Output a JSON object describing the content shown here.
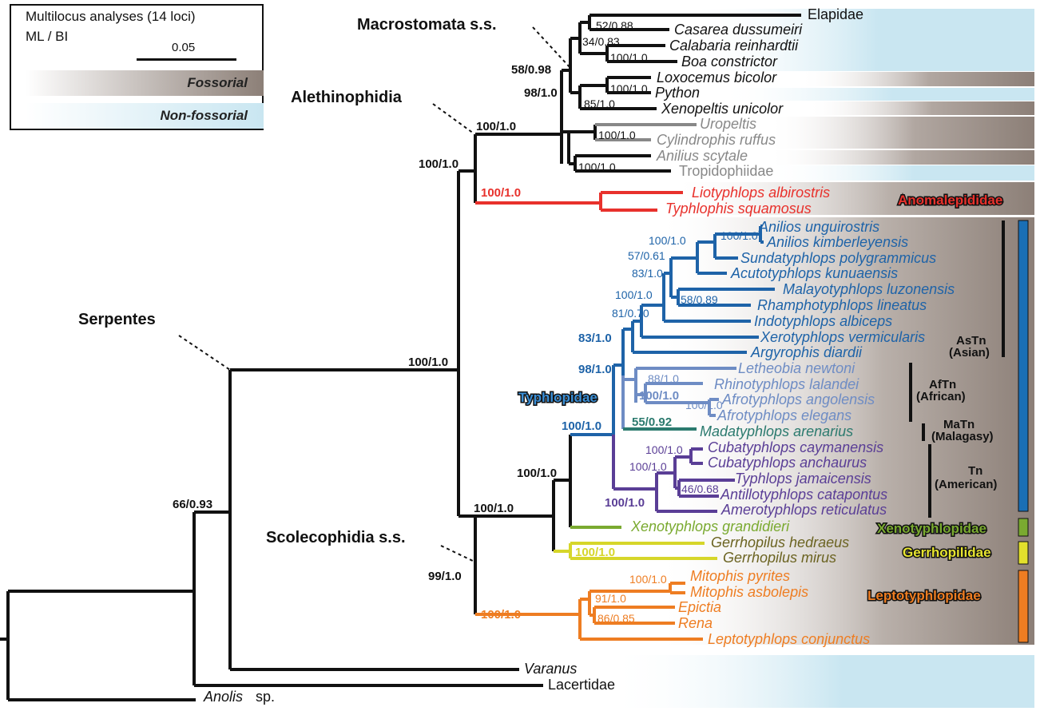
{
  "legend": {
    "title": "Multilocus analyses (14 loci)",
    "subtitle": "ML / BI",
    "scale_label": "0.05",
    "fossorial_label": "Fossorial",
    "nonfossorial_label": "Non-fossorial"
  },
  "colors": {
    "black": "#111111",
    "anomalepididae": "#e8312c",
    "asian": "#1e63a8",
    "african": "#6e8cc4",
    "malagasy": "#2b7a6e",
    "american": "#5a3e96",
    "xenotyphlopidae": "#7aaa30",
    "gerrhopilidae": "#d6d62a",
    "gerrhopilidae_text": "#6b6321",
    "leptotyphlopidae": "#ee7d22",
    "gray": "#888888",
    "fossorial_band": "#8c7f77",
    "nonfossorial_band": "#c9e6f1"
  },
  "clade_labels": {
    "macrostomata": "Macrostomata s.s.",
    "alethinophidia": "Alethinophidia",
    "serpentes": "Serpentes",
    "scolecophidia": "Scolecophidia s.s."
  },
  "family_labels": {
    "anomalepididae": "Anomalepididae",
    "typhlopidae": "Typhlopidae",
    "xenotyphlopidae": "Xenotyphlopidae",
    "gerrhopilidae": "Gerrhopilidae",
    "leptotyphlopidae": "Leptotyphlopidae"
  },
  "group_labels": [
    {
      "code": "AsTn",
      "name": "(Asian)"
    },
    {
      "code": "AfTn",
      "name": "(African)"
    },
    {
      "code": "MaTn",
      "name": "(Malagasy)"
    },
    {
      "code": "Tn",
      "name": "(American)"
    }
  ],
  "taxa": {
    "elapidae": "Elapidae",
    "casarea": "Casarea dussumeiri",
    "calabaria": "Calabaria reinhardtii",
    "boa": "Boa constrictor",
    "loxocemus": "Loxocemus bicolor",
    "python": "Python",
    "xenopeltis": "Xenopeltis unicolor",
    "uropeltis": "Uropeltis",
    "cylindrophis": "Cylindrophis ruffus",
    "anilius": "Anilius scytale",
    "tropidophiidae": "Tropidophiidae",
    "liotyphlops": "Liotyphlops albirostris",
    "typhlophis": "Typhlophis squamosus",
    "anilios_u": "Anilios unguirostris",
    "anilios_k": "Anilios kimberleyensis",
    "sundatyphlops": "Sundatyphlops polygrammicus",
    "acutotyphlops": "Acutotyphlops kunuaensis",
    "malayotyphlops": "Malayotyphlops luzonensis",
    "rhamphotyphlops": "Rhamphotyphlops lineatus",
    "indotyphlops": "Indotyphlops albiceps",
    "xerotyphlops": "Xerotyphlops vermicularis",
    "argyrophis": "Argyrophis diardii",
    "letheobia": "Letheobia newtoni",
    "rhinotyphlops": "Rhinotyphlops lalandei",
    "afro_ang": "Afrotyphlops angolensis",
    "afro_ele": "Afrotyphlops elegans",
    "madatyphlops": "Madatyphlops arenarius",
    "cuba_cay": "Cubatyphlops caymanensis",
    "cuba_anc": "Cubatyphlops anchaurus",
    "typhlops_j": "Typhlops jamaicensis",
    "antillotyphlops": "Antillotyphlops catapontus",
    "amerotyphlops": "Amerotyphlops reticulatus",
    "xenotyphlops": "Xenotyphlops grandidieri",
    "gerr_hed": "Gerrhopilus hedraeus",
    "gerr_mir": "Gerrhopilus mirus",
    "mito_pyr": "Mitophis pyrites",
    "mito_asb": "Mitophis asbolepis",
    "epictia": "Epictia",
    "rena": "Rena",
    "leptotyphlops": "Leptotyphlops conjunctus",
    "varanus": "Varanus",
    "lacertidae": "Lacertidae",
    "anolis_genus": "Anolis",
    "anolis_sp": "sp."
  },
  "support": {
    "s_52": "52/0.88",
    "s_34": "34/0.83",
    "s_boa": "100/1.0",
    "s_5898": "58/0.98",
    "s_pyth": "100/1.0",
    "s_9810": "98/1.0",
    "s_85": "85/1.0",
    "s_uro": "100/1.0",
    "s_ani": "100/1.0",
    "s_alethi": "100/1.0",
    "s_5": "100/1.0",
    "s_anom": "100/1.0",
    "s_anilios": "100/1.0",
    "s_sunda": "100/1.0",
    "s_57": "57/0.61",
    "s_83a": "83/1.0",
    "s_rhampho": "100/1.0",
    "s_58": "58/0.89",
    "s_81": "81/0.70",
    "s_83b": "83/1.0",
    "s_98": "98/1.0",
    "s_rhino": "88/1.0",
    "s_afro_i": "100/1.0",
    "s_afro_t": "100/1.0",
    "s_55": "55/0.92",
    "s_typh": "100/1.0",
    "s_cuba": "100/1.0",
    "s_amer_i": "100/1.0",
    "s_46": "46/0.68",
    "s_amer": "100/1.0",
    "s_xenotyph": "100/1.0",
    "s_scole": "100/1.0",
    "s_gerr": "100/1.0",
    "s_99": "99/1.0",
    "s_mito": "100/1.0",
    "s_91": "91/1.0",
    "s_86": "86/0.85",
    "s_lepto": "100/1.0",
    "s_serp": "100/1.0",
    "s_66": "66/0.93"
  }
}
